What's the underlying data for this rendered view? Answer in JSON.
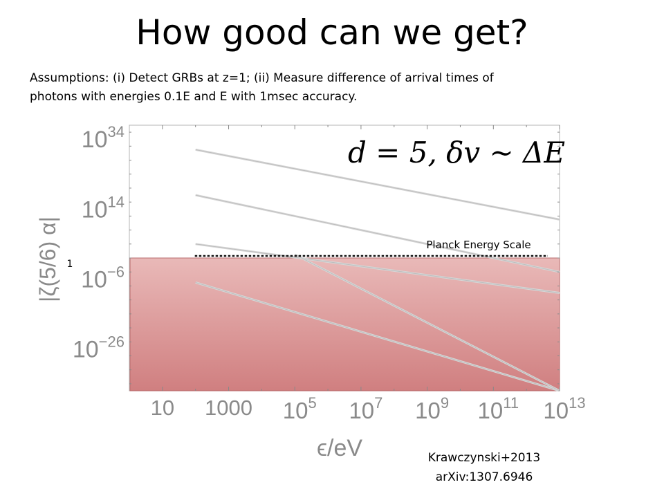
{
  "slide": {
    "title": "How good can we get?",
    "assumptions_line1": "Assumptions: (i) Detect GRBs at z=1; (ii) Measure difference of arrival times of",
    "assumptions_line2": "photons with energies 0.1E and E with 1msec accuracy.",
    "citation_line1": "Krawczynski+2013",
    "citation_line2": "arXiv:1307.6946"
  },
  "chart_data": {
    "type": "line",
    "x_scale": "log",
    "y_scale": "log",
    "xlabel": "ϵ/eV",
    "ylabel": "|ζ(5/6) α|",
    "xlim": [
      1,
      10000000000000.0
    ],
    "ylim": [
      1e-38,
      1e+38
    ],
    "x_ticks": [
      {
        "value": 10,
        "base": "10",
        "exp": ""
      },
      {
        "value": 1000,
        "base": "1000",
        "exp": ""
      },
      {
        "value": 100000.0,
        "base": "10",
        "exp": "5"
      },
      {
        "value": 10000000.0,
        "base": "10",
        "exp": "7"
      },
      {
        "value": 1000000000.0,
        "base": "10",
        "exp": "9"
      },
      {
        "value": 100000000000.0,
        "base": "10",
        "exp": "11"
      },
      {
        "value": 10000000000000.0,
        "base": "10",
        "exp": "13"
      }
    ],
    "y_ticks": [
      {
        "value": 1e+34,
        "base": "10",
        "exp": "34"
      },
      {
        "value": 100000000000000.0,
        "base": "10",
        "exp": "14"
      },
      {
        "value": 1e-06,
        "base": "10",
        "exp": "−6"
      },
      {
        "value": 1e-26,
        "base": "10",
        "exp": "−26"
      }
    ],
    "annotation": "d = 5, δv ~ ΔE",
    "reference_line": {
      "label": "Planck Energy Scale",
      "value": 1,
      "value_label": "1"
    },
    "shaded_region": {
      "ymin": 1e-38,
      "ymax": 1,
      "color": "#d48585"
    },
    "series": [
      {
        "x": [
          100,
          10000000000000.0
        ],
        "y": [
          1e+31,
          100000000000.0
        ]
      },
      {
        "x": [
          100,
          10000000000000.0
        ],
        "y": [
          1e+18,
          0.0001
        ]
      },
      {
        "x": [
          100,
          10000000000000.0
        ],
        "y": [
          10000.0,
          1e-10
        ]
      },
      {
        "x": [
          100,
          10000000000000.0
        ],
        "y": [
          1e-07,
          1e-38
        ]
      },
      {
        "x": [
          100000.0,
          10000000000000.0
        ],
        "y": [
          10.0,
          1e-38
        ]
      }
    ]
  }
}
